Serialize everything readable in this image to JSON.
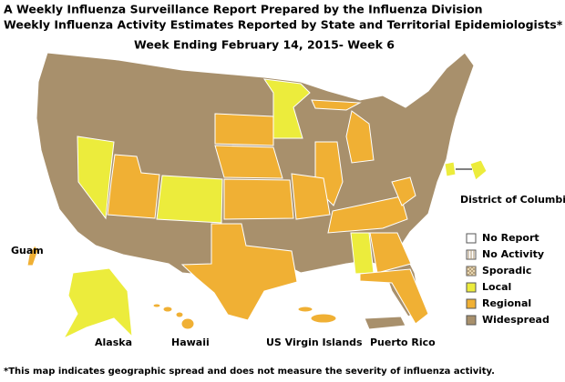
{
  "header": {
    "title": "A Weekly Influenza Surveillance Report Prepared by the Influenza Division",
    "subtitle": "Weekly Influenza Activity Estimates Reported by State and Territorial Epidemiologists*",
    "week": "Week Ending February 14, 2015- Week 6"
  },
  "legend": [
    {
      "label": "No Report",
      "color": "#ffffff",
      "pattern": "none"
    },
    {
      "label": "No Activity",
      "color": "#ffffff",
      "pattern": "vertical"
    },
    {
      "label": "Sporadic",
      "color": "#f5e6c0",
      "pattern": "cross"
    },
    {
      "label": "Local",
      "color": "#ecec3c",
      "pattern": "none"
    },
    {
      "label": "Regional",
      "color": "#f0b034",
      "pattern": "none"
    },
    {
      "label": "Widespread",
      "color": "#a8906c",
      "pattern": "none"
    }
  ],
  "map_labels": [
    "Guam",
    "Alaska",
    "Hawaii",
    "US Virgin Islands",
    "Puerto Rico",
    "District of Columbia"
  ],
  "footnote": "*This map indicates geographic spread and does not measure the severity of influenza activity."
}
